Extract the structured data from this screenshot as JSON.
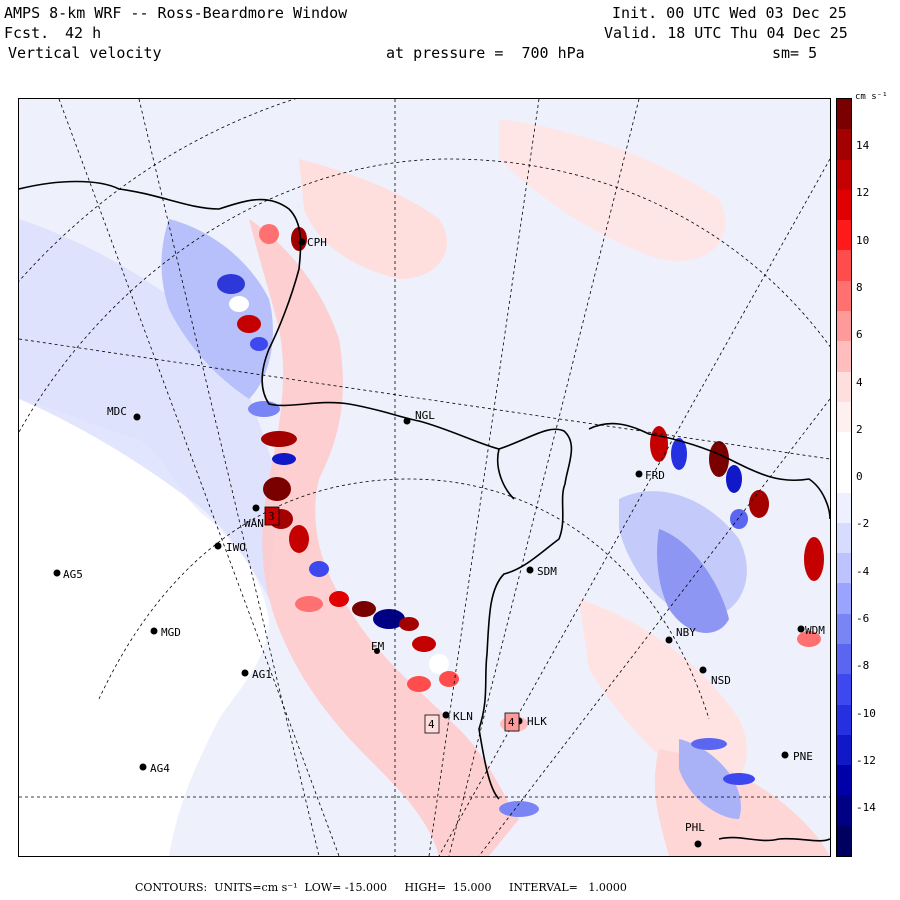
{
  "header": {
    "title": "AMPS 8-km WRF -- Ross-Beardmore Window",
    "forecast_label": "Fcst.",
    "forecast_hours": "42 h",
    "field": "Vertical velocity",
    "pressure_text": "at pressure =  700 hPa",
    "init": "Init. 00 UTC Wed 03 Dec 25",
    "valid": "Valid. 18 UTC Thu 04 Dec 25",
    "smoothing": "sm= 5"
  },
  "colorbar": {
    "units": "cm s⁻¹",
    "ticks": [
      "14",
      "12",
      "10",
      "8",
      "6",
      "4",
      "2",
      "0",
      "-2",
      "-4",
      "-6",
      "-8",
      "-10",
      "-12",
      "-14"
    ],
    "colors": [
      "#7a0000",
      "#a30000",
      "#c40000",
      "#e00000",
      "#ff1a1a",
      "#ff4d4d",
      "#ff7070",
      "#ff9a9a",
      "#ffbdbd",
      "#ffdede",
      "#fff0f0",
      "#ffffff",
      "#ffffff",
      "#eef0ff",
      "#d7dcff",
      "#bcc3ff",
      "#9aa4ff",
      "#7a85f5",
      "#5b66f0",
      "#3d48ee",
      "#2530e0",
      "#1018c8",
      "#0000a8",
      "#000085",
      "#000060"
    ]
  },
  "footer": {
    "text": "CONTOURS:  UNITS=cm s⁻¹  LOW= -15.000     HIGH=  15.000     INTERVAL=   1.0000"
  },
  "stations": [
    {
      "id": "CPH",
      "label": "CPH"
    },
    {
      "id": "MDC",
      "label": "MDC"
    },
    {
      "id": "NGL",
      "label": "NGL"
    },
    {
      "id": "FRD",
      "label": "FRD"
    },
    {
      "id": "WAN",
      "label": "WAN"
    },
    {
      "id": "IWO",
      "label": "IWO"
    },
    {
      "id": "AG5",
      "label": "AG5"
    },
    {
      "id": "SDM",
      "label": "SDM"
    },
    {
      "id": "MGD",
      "label": "MGD"
    },
    {
      "id": "NBY",
      "label": "NBY"
    },
    {
      "id": "AG1",
      "label": "AG1"
    },
    {
      "id": "NSD",
      "label": "NSD"
    },
    {
      "id": "KLN",
      "label": "KLN"
    },
    {
      "id": "HLK",
      "label": "HLK"
    },
    {
      "id": "AG4",
      "label": "AG4"
    },
    {
      "id": "PNE",
      "label": "PNE"
    },
    {
      "id": "PHL",
      "label": "PHL"
    },
    {
      "id": "EM",
      "label": "EM"
    },
    {
      "id": "WDM",
      "label": "WDM"
    }
  ],
  "annotations": {
    "mark1": "4",
    "mark2": "4",
    "mark3": "3"
  }
}
